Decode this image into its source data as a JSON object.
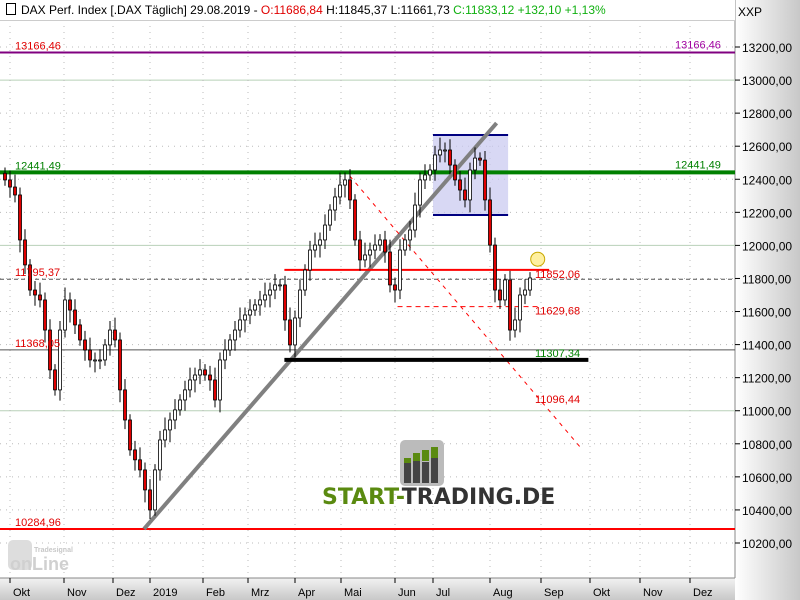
{
  "header": {
    "title": "DAX Perf. Index [.DAX  Täglich] 29.08.2019 -",
    "open": "O:11686,84",
    "high": "H:11845,37",
    "low": "L:11661,73",
    "close": "C:11833,12 +132,10 +1,13%"
  },
  "axis_unit": "XXP",
  "branding": {
    "logo": "START-TRADING.DE",
    "watermark": "Tradesignal online"
  },
  "colors": {
    "up": "#ffffff",
    "down": "#e00000",
    "resistance": "#800080",
    "support_green": "#008000",
    "red_level": "#ff0000",
    "box": "#c8c8f0",
    "box_border": "#000080",
    "trendline": "#808080"
  },
  "chart_data": {
    "type": "candlestick",
    "x_start": "2018-09-28",
    "x_end": "2019-08-29",
    "x_ticks": [
      "Okt",
      "Nov",
      "Dez",
      "2019",
      "Feb",
      "Mrz",
      "Apr",
      "Mai",
      "Jun",
      "Jul",
      "Aug",
      "Sep",
      "Okt",
      "Nov",
      "Dez"
    ],
    "ylim": [
      10100,
      13300
    ],
    "y_ticks": [
      "13200,00",
      "13000,00",
      "12800,00",
      "12600,00",
      "12400,00",
      "12200,00",
      "12000,00",
      "11800,00",
      "11600,00",
      "11400,00",
      "11200,00",
      "11000,00",
      "10800,00",
      "10600,00",
      "10400,00",
      "10200,00"
    ],
    "closes": [
      12396,
      12353,
      12305,
      12033,
      11882,
      11730,
      11700,
      11670,
      11488,
      11247,
      11126,
      11488,
      11670,
      11609,
      11519,
      11428,
      11367,
      11307,
      11307,
      11307,
      11398,
      11488,
      11428,
      11126,
      10944,
      10763,
      10703,
      10642,
      10521,
      10400,
      10642,
      10823,
      10884,
      10944,
      11005,
      11065,
      11126,
      11186,
      11216,
      11247,
      11216,
      11186,
      11065,
      11307,
      11367,
      11428,
      11488,
      11549,
      11579,
      11609,
      11640,
      11670,
      11700,
      11730,
      11761,
      11761,
      11549,
      11398,
      11561,
      11730,
      11851,
      11972,
      12002,
      12033,
      12123,
      12214,
      12293,
      12365,
      12396,
      12275,
      12033,
      11912,
      11942,
      11972,
      12002,
      12033,
      11960,
      11761,
      11730,
      11972,
      12033,
      12093,
      12244,
      12396,
      12426,
      12456,
      12547,
      12577,
      12577,
      12486,
      12396,
      12335,
      12275,
      12456,
      12528,
      12516,
      12275,
      12002,
      11730,
      11670,
      11791,
      11488,
      11549,
      11700,
      11730,
      11803
    ],
    "levels": [
      {
        "value": 13166.46,
        "label": "13166,46",
        "color": "#800080",
        "style": "solid"
      },
      {
        "value": 12441.49,
        "label": "12441,49",
        "color": "#008000",
        "style": "thick"
      },
      {
        "value": 11795.37,
        "label": "11795,37",
        "color": "#555555",
        "style": "dashed"
      },
      {
        "value": 11368.05,
        "label": "11368,05",
        "color": "#555555",
        "style": "thin"
      },
      {
        "value": 10284.96,
        "label": "10284,96",
        "color": "#ff0000",
        "style": "solid"
      }
    ],
    "segments": [
      {
        "value": 11852.06,
        "label": "11852,06",
        "color": "#ff0000",
        "style": "solid",
        "from": "2019-03-25",
        "to": "2019-09-06"
      },
      {
        "value": 11629.68,
        "label": "11629,68",
        "color": "#ff0000",
        "style": "dashed",
        "from": "2019-06-03",
        "to": "2019-08-30"
      },
      {
        "value": 11307.34,
        "label": "11307,34",
        "color": "#000000",
        "style": "thick",
        "from": "2019-03-25",
        "to": "2019-09-30"
      },
      {
        "value": 11096.44,
        "label": "11096,44",
        "color": "#ff0000",
        "style": "none"
      }
    ],
    "box": {
      "top": 12668,
      "bottom": 12184,
      "from": "2019-07-01",
      "to": "2019-08-12"
    },
    "trendline": {
      "from": [
        "2018-12-27",
        10284.96
      ],
      "to": [
        "2019-08-05",
        12740
      ]
    },
    "downtrend": {
      "from": [
        "2019-05-06",
        12420
      ],
      "to": [
        "2019-09-25",
        10780
      ]
    },
    "marker": {
      "date": "2019-08-30",
      "value": 11850
    }
  }
}
